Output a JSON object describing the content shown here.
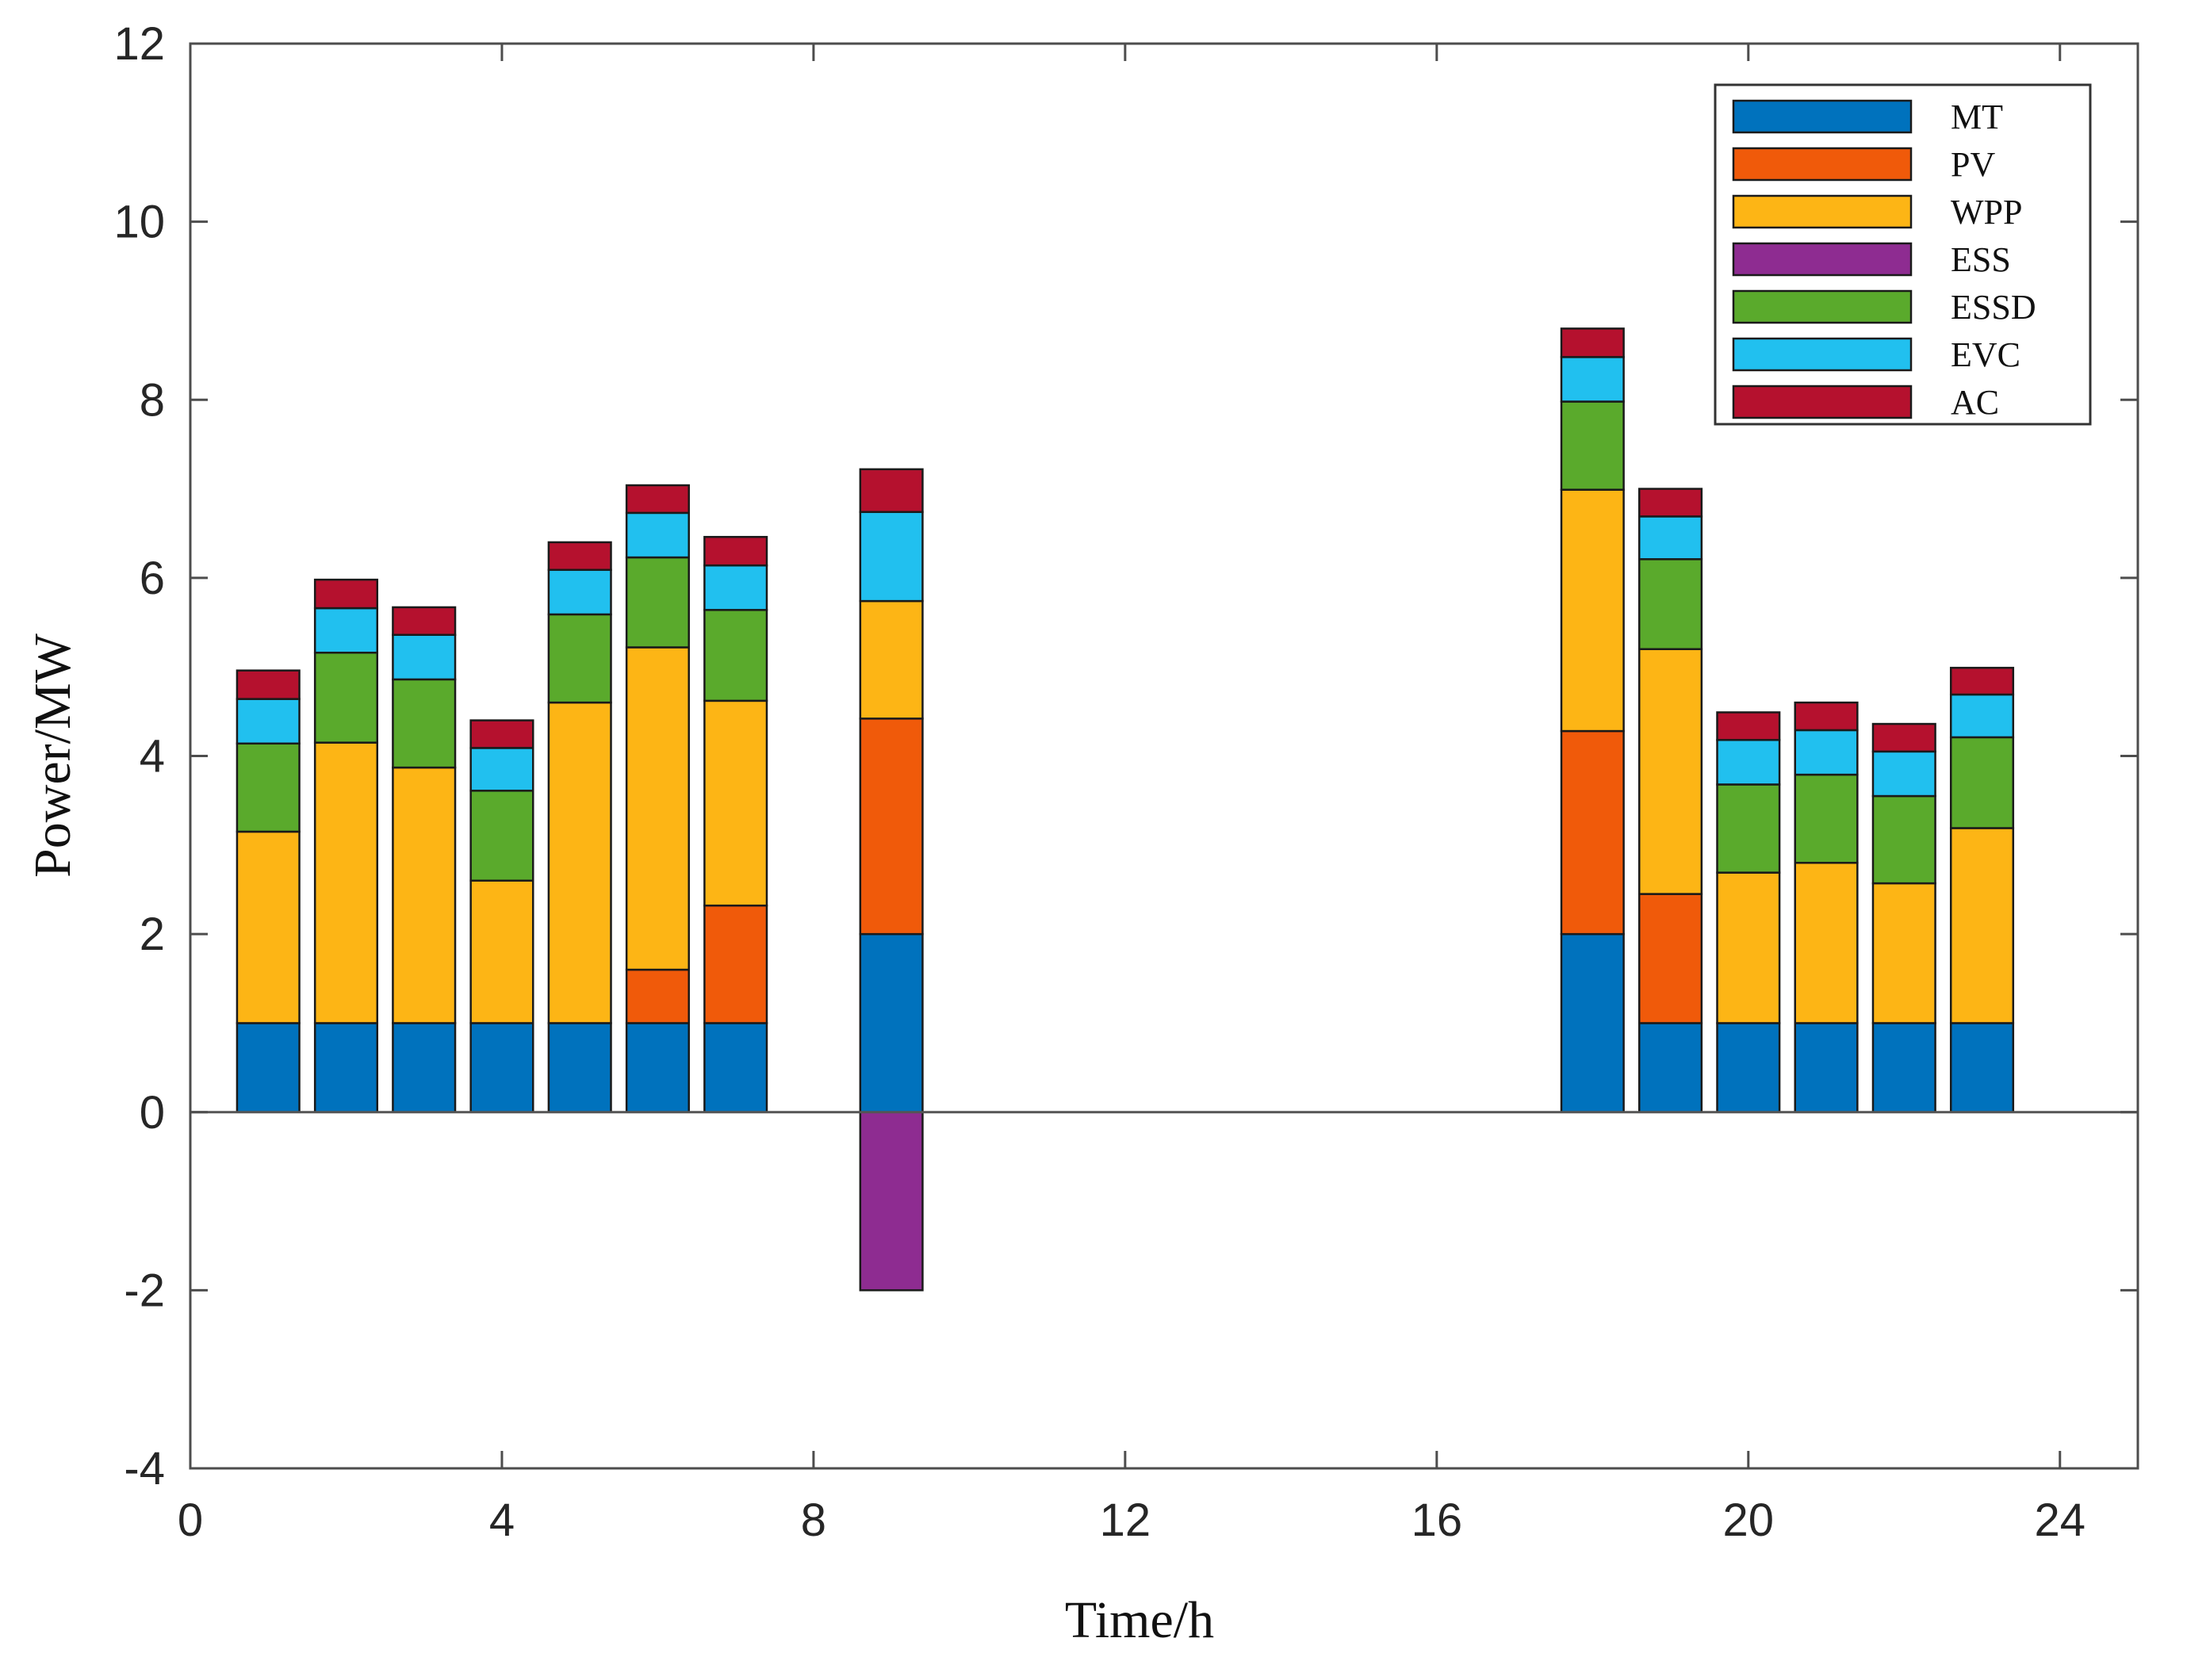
{
  "chart_data": {
    "type": "bar",
    "stacked": true,
    "xlabel": "Time/h",
    "ylabel": "Power/MW",
    "xlim": [
      0,
      25
    ],
    "ylim": [
      -4,
      12
    ],
    "x_ticks": [
      0,
      4,
      8,
      12,
      16,
      20,
      24
    ],
    "y_ticks": [
      -4,
      -2,
      0,
      2,
      4,
      6,
      8,
      10,
      12
    ],
    "grid": false,
    "legend_position": "top-right",
    "x": [
      1,
      2,
      3,
      4,
      5,
      6,
      7,
      9,
      18,
      19,
      20,
      21,
      22,
      23
    ],
    "series": [
      {
        "name": "MT",
        "color": "#0072BD",
        "values": [
          1,
          1,
          1,
          1,
          1,
          1,
          1,
          2,
          2,
          1,
          1,
          1,
          1,
          1
        ]
      },
      {
        "name": "PV",
        "color": "#F05A0A",
        "values": [
          0,
          0,
          0,
          0,
          0,
          0.6,
          1.32,
          2.42,
          2.28,
          1.45,
          0,
          0,
          0,
          0
        ]
      },
      {
        "name": "WPP",
        "color": "#FDB515",
        "values": [
          2.15,
          3.15,
          2.87,
          1.6,
          3.6,
          3.62,
          2.3,
          1.32,
          2.71,
          2.75,
          1.69,
          1.8,
          1.57,
          2.19
        ]
      },
      {
        "name": "ESS",
        "color": "#8E2C91",
        "values": [
          0,
          0,
          0,
          0,
          0,
          0,
          0,
          -2,
          0,
          0,
          0,
          0,
          0,
          0
        ]
      },
      {
        "name": "ESSD",
        "color": "#5AAA2C",
        "values": [
          0.99,
          1.01,
          0.99,
          1.01,
          0.99,
          1.01,
          1.02,
          0,
          0.99,
          1.01,
          0.99,
          0.99,
          0.98,
          1.02
        ]
      },
      {
        "name": "EVC",
        "color": "#21C0EF",
        "values": [
          0.5,
          0.5,
          0.5,
          0.48,
          0.5,
          0.5,
          0.5,
          1,
          0.5,
          0.48,
          0.5,
          0.5,
          0.5,
          0.48
        ]
      },
      {
        "name": "AC",
        "color": "#B5112E",
        "values": [
          0.32,
          0.32,
          0.31,
          0.31,
          0.31,
          0.31,
          0.32,
          0.48,
          0.32,
          0.31,
          0.31,
          0.31,
          0.31,
          0.3
        ]
      }
    ]
  }
}
